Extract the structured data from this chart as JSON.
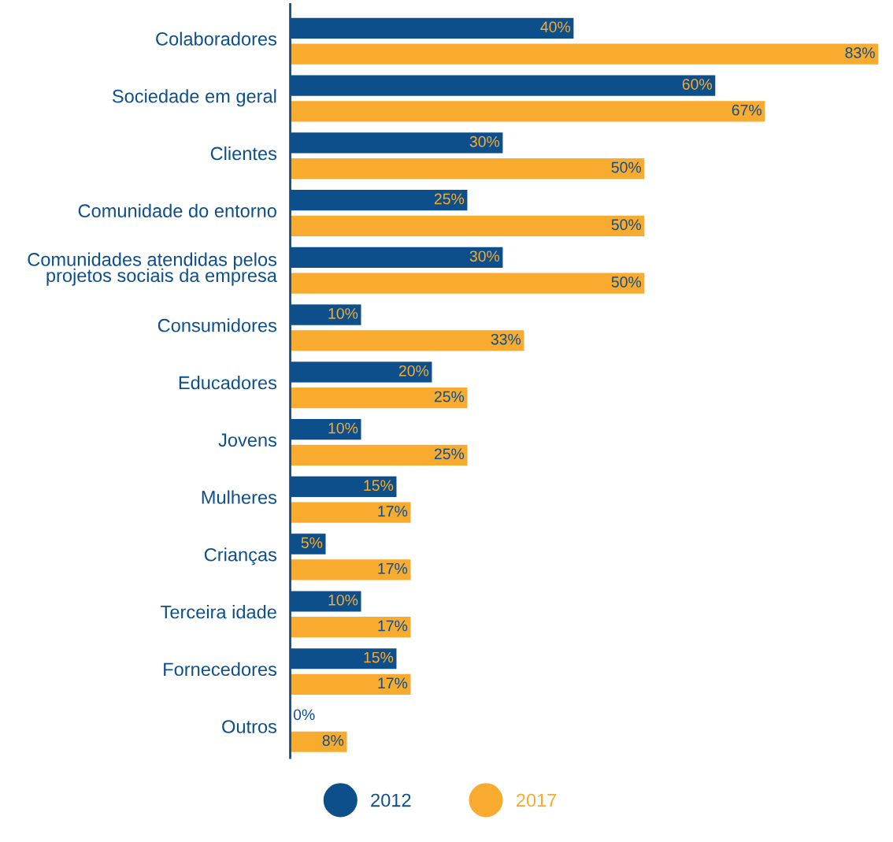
{
  "chart_data": {
    "type": "bar",
    "orientation": "horizontal",
    "categories": [
      "Colaboradores",
      "Sociedade em geral",
      "Clientes",
      "Comunidade do entorno",
      "Comunidades atendidas pelos\nprojetos sociais da empresa",
      "Consumidores",
      "Educadores",
      "Jovens",
      "Mulheres",
      "Crianças",
      "Terceira idade",
      "Fornecedores",
      "Outros"
    ],
    "series": [
      {
        "name": "2012",
        "color": "#0d4f8b",
        "values": [
          40,
          60,
          30,
          25,
          30,
          10,
          20,
          10,
          15,
          5,
          10,
          15,
          0
        ],
        "value_labels": [
          "40%",
          "60%",
          "30%",
          "25%",
          "30%",
          "10%",
          "20%",
          "10%",
          "15%",
          "5%",
          "10%",
          "15%",
          "0%"
        ]
      },
      {
        "name": "2017",
        "color": "#f9ab2f",
        "values": [
          83,
          67,
          50,
          50,
          50,
          33,
          25,
          25,
          17,
          17,
          17,
          17,
          8
        ],
        "value_labels": [
          "83%",
          "67%",
          "50%",
          "50%",
          "50%",
          "33%",
          "25%",
          "25%",
          "17%",
          "17%",
          "17%",
          "17%",
          "8%"
        ]
      }
    ],
    "legend": "bottom"
  }
}
